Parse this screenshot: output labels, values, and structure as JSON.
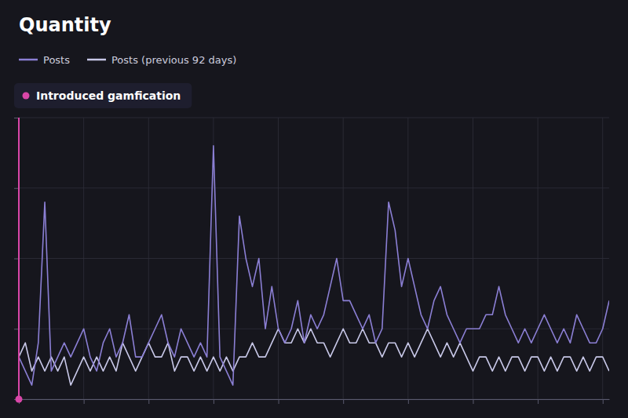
{
  "chart_data": {
    "type": "line",
    "title": "Quantity",
    "x": [
      0,
      1,
      2,
      3,
      4,
      5,
      6,
      7,
      8,
      9,
      10,
      11,
      12,
      13,
      14,
      15,
      16,
      17,
      18,
      19,
      20,
      21,
      22,
      23,
      24,
      25,
      26,
      27,
      28,
      29,
      30,
      31,
      32,
      33,
      34,
      35,
      36,
      37,
      38,
      39,
      40,
      41,
      42,
      43,
      44,
      45,
      46,
      47,
      48,
      49,
      50,
      51,
      52,
      53,
      54,
      55,
      56,
      57,
      58,
      59,
      60,
      61,
      62,
      63,
      64,
      65,
      66,
      67,
      68,
      69,
      70,
      71,
      72,
      73,
      74,
      75,
      76,
      77,
      78,
      79,
      80,
      81,
      82,
      83,
      84,
      85,
      86,
      87,
      88,
      89,
      90,
      91
    ],
    "series": [
      {
        "name": "Posts",
        "color": "#8b7fd4",
        "values": [
          3,
          2,
          1,
          4,
          14,
          2,
          3,
          4,
          3,
          4,
          5,
          3,
          2,
          4,
          5,
          3,
          4,
          6,
          3,
          3,
          4,
          5,
          6,
          4,
          3,
          5,
          4,
          3,
          4,
          3,
          18,
          3,
          2,
          1,
          13,
          10,
          8,
          10,
          5,
          8,
          5,
          4,
          5,
          7,
          4,
          6,
          5,
          6,
          8,
          10,
          7,
          7,
          6,
          5,
          6,
          4,
          5,
          14,
          12,
          8,
          10,
          8,
          6,
          5,
          7,
          8,
          6,
          5,
          4,
          5,
          5,
          5,
          6,
          6,
          8,
          6,
          5,
          4,
          5,
          4,
          5,
          6,
          5,
          4,
          5,
          4,
          6,
          5,
          4,
          4,
          5,
          7
        ]
      },
      {
        "name": "Posts (previous 92 days)",
        "color": "#c8c8e8",
        "values": [
          3,
          4,
          2,
          3,
          2,
          3,
          2,
          3,
          1,
          2,
          3,
          2,
          3,
          2,
          3,
          2,
          4,
          3,
          2,
          3,
          4,
          3,
          3,
          4,
          2,
          3,
          3,
          2,
          3,
          2,
          3,
          2,
          3,
          2,
          3,
          3,
          4,
          3,
          3,
          4,
          5,
          4,
          4,
          5,
          4,
          5,
          4,
          4,
          3,
          4,
          5,
          4,
          4,
          5,
          4,
          4,
          3,
          4,
          4,
          3,
          4,
          3,
          4,
          5,
          4,
          3,
          4,
          3,
          4,
          3,
          2,
          3,
          3,
          2,
          3,
          2,
          3,
          3,
          2,
          3,
          3,
          2,
          3,
          2,
          3,
          3,
          2,
          3,
          2,
          3,
          3,
          2
        ]
      }
    ],
    "xlim": [
      0,
      91
    ],
    "xticks": [
      0,
      10,
      20,
      30,
      40,
      50,
      60,
      70,
      80,
      90
    ],
    "ylim": [
      0,
      20
    ],
    "yticks": [
      0,
      5,
      10,
      15,
      20
    ],
    "grid": true,
    "tick_labels": false,
    "legend": "top-left",
    "annotations": [
      {
        "text": "Introduced gamfication",
        "x": 0,
        "y": 0,
        "color": "#d946a8"
      }
    ]
  }
}
